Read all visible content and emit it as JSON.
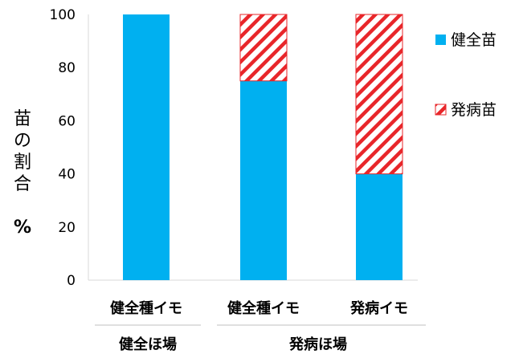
{
  "chart_data": {
    "type": "bar",
    "stacked": true,
    "categories": [
      "健全種イモ",
      "健全種イモ",
      "発病イモ"
    ],
    "groups": [
      {
        "label": "健全ほ場",
        "categories": [
          0
        ]
      },
      {
        "label": "発病ほ場",
        "categories": [
          1,
          2
        ]
      }
    ],
    "series": [
      {
        "name": "健全苗",
        "values": [
          100,
          75,
          40
        ],
        "color": "#00B0F0",
        "pattern": "solid"
      },
      {
        "name": "発病苗",
        "values": [
          0,
          25,
          60
        ],
        "color": "#E8262A",
        "pattern": "diagonal-hatch"
      }
    ],
    "ylabel_chars": [
      "苗",
      "の",
      "割",
      "合",
      "%"
    ],
    "ylim": [
      0,
      100
    ],
    "yticks": [
      0,
      20,
      40,
      60,
      80,
      100
    ],
    "legend_position": "right",
    "grid": false
  }
}
